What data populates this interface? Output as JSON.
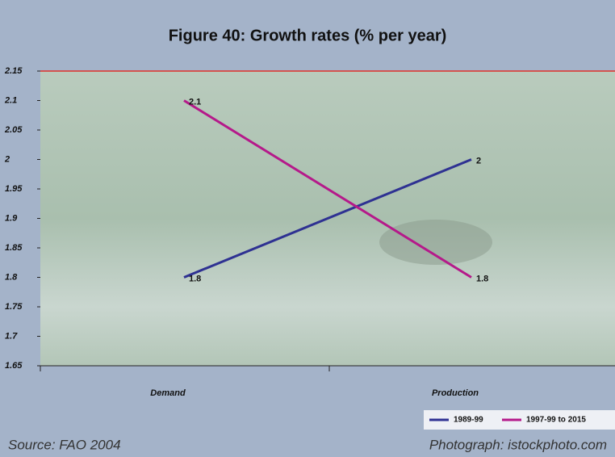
{
  "chart_data": {
    "type": "line",
    "title": "Figure 40: Growth rates (% per year)",
    "categories": [
      "Demand",
      "Production"
    ],
    "series": [
      {
        "name": "1989-99",
        "color": "#2e3192",
        "values": [
          1.8,
          2
        ]
      },
      {
        "name": "1997-99 to 2015",
        "color": "#b5198a",
        "values": [
          2.1,
          1.8
        ]
      }
    ],
    "ylim": [
      1.65,
      2.15
    ],
    "yticks": [
      1.65,
      1.7,
      1.75,
      1.8,
      1.85,
      1.9,
      1.95,
      2,
      2.05,
      2.1,
      2.15
    ],
    "legend": "bottom-right",
    "annotations": [
      "Source: FAO 2004",
      "Photograph: istockphoto.com"
    ]
  }
}
